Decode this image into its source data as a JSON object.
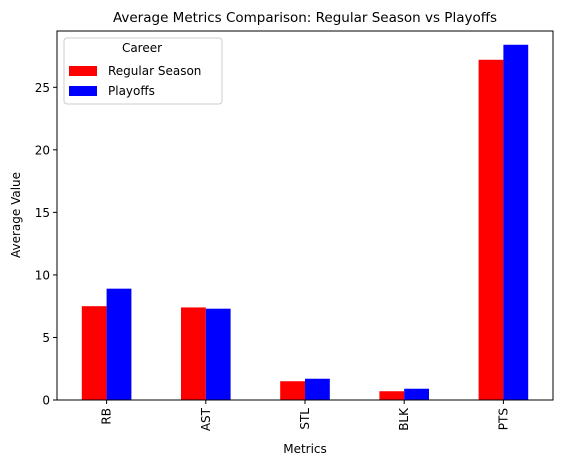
{
  "chart_data": {
    "type": "bar",
    "title": "Average Metrics Comparison: Regular Season vs Playoffs",
    "xlabel": "Metrics",
    "ylabel": "Average Value",
    "categories": [
      "RB",
      "AST",
      "STL",
      "BLK",
      "PTS"
    ],
    "series": [
      {
        "name": "Regular Season",
        "color": "#ff0000",
        "values": [
          7.5,
          7.4,
          1.5,
          0.7,
          27.2
        ]
      },
      {
        "name": "Playoffs",
        "color": "#0000ff",
        "values": [
          8.9,
          7.3,
          1.7,
          0.9,
          28.4
        ]
      }
    ],
    "ylim": [
      0,
      29.5
    ],
    "yticks": [
      "0",
      "5",
      "10",
      "15",
      "20",
      "25"
    ],
    "legend": {
      "title": "Career",
      "placement": "upper-left"
    },
    "grid": false
  }
}
